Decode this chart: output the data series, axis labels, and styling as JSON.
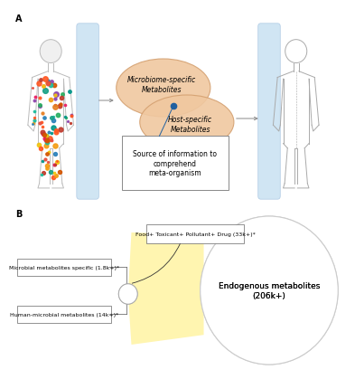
{
  "bg_color": "#ffffff",
  "panel_A_label": "A",
  "panel_B_label": "B",
  "ellipse1_label": "Microbiome-specific\nMetabolites",
  "ellipse2_label": "Host-specific\nMetabolites",
  "ellipse_color": "#f0c8a0",
  "ellipse_edge": "#d4a070",
  "box_text": "Source of information to\ncomprehend\nmeta-organism",
  "endogenous_label": "Endogenous metabolites\n(206k+)",
  "food_label": "Food+ Toxicant+ Pollutant+ Drug (33k+)*",
  "microbial_label": "Microbial metabolites specific (1.8k+)*",
  "human_microbial_label": "Human-microbial metabolites (14k+)*",
  "fan_color": "#fff5b0",
  "large_circle_color": "#ffffff",
  "large_circle_edge": "#cccccc",
  "bar_color": "#c5dff0",
  "bar_edge": "#a0c0e0",
  "body_outline_color": "#888888",
  "dot_color": "#2060a0",
  "line_color": "#888888",
  "font_size_tiny": 4.5,
  "font_size_small": 5.5,
  "font_size_medium": 6.5,
  "font_size_large": 8
}
